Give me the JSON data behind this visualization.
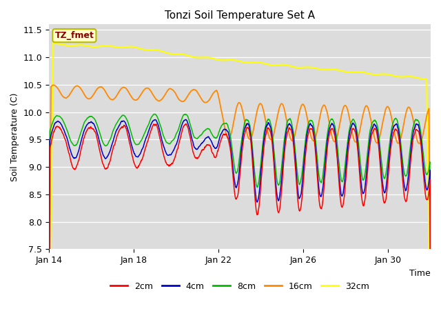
{
  "title": "Tonzi Soil Temperature Set A",
  "xlabel": "Time",
  "ylabel": "Soil Temperature (C)",
  "ylim": [
    7.5,
    11.6
  ],
  "xlim_days": [
    0,
    18
  ],
  "plot_bg_color": "#dcdcdc",
  "annotation_text": "TZ_fmet",
  "annotation_bg": "#ffffcc",
  "annotation_border": "#bbbb00",
  "annotation_fg": "#880000",
  "colors": {
    "2cm": "#ff0000",
    "4cm": "#0000cc",
    "8cm": "#00bb00",
    "16cm": "#ff8800",
    "32cm": "#ffff00"
  },
  "xtick_labels": [
    "Jan 14",
    "Jan 18",
    "Jan 22",
    "Jan 26",
    "Jan 30"
  ],
  "xtick_positions": [
    0,
    4,
    8,
    12,
    16
  ],
  "ytick_positions": [
    7.5,
    8.0,
    8.5,
    9.0,
    9.5,
    10.0,
    10.5,
    11.0,
    11.5
  ]
}
